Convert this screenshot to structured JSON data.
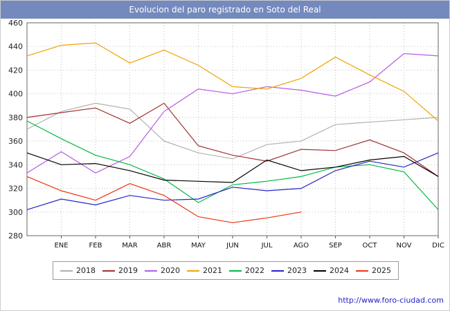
{
  "header": {
    "title": "Evolucion del paro registrado en Soto del Real",
    "bg_color": "#7489bd",
    "text_color": "#ffffff"
  },
  "footer": {
    "url": "http://www.foro-ciudad.com",
    "link_color": "#2222cc"
  },
  "chart_data": {
    "type": "line",
    "title": "Evolucion del paro registrado en Soto del Real",
    "xlabel": "",
    "ylabel": "",
    "ylim": [
      280,
      460
    ],
    "y_ticks": [
      280,
      300,
      320,
      340,
      360,
      380,
      400,
      420,
      440,
      460
    ],
    "x_categories": [
      "ENE",
      "FEB",
      "MAR",
      "ABR",
      "MAY",
      "JUN",
      "JUL",
      "AGO",
      "SEP",
      "OCT",
      "NOV",
      "DIC"
    ],
    "grid": true,
    "legend_position": "bottom",
    "series": [
      {
        "name": "2018",
        "color": "#b0b0b0",
        "start_value": 370,
        "values": [
          385,
          392,
          387,
          360,
          350,
          345,
          357,
          360,
          374,
          376,
          378,
          380
        ]
      },
      {
        "name": "2019",
        "color": "#a03030",
        "start_value": 380,
        "values": [
          384,
          388,
          375,
          392,
          356,
          348,
          343,
          353,
          352,
          361,
          350,
          330
        ]
      },
      {
        "name": "2020",
        "color": "#b45ce0",
        "start_value": 333,
        "values": [
          351,
          333,
          347,
          385,
          404,
          400,
          406,
          403,
          398,
          410,
          434,
          432
        ]
      },
      {
        "name": "2021",
        "color": "#f2a200",
        "start_value": 432,
        "values": [
          441,
          443,
          426,
          437,
          424,
          406,
          404,
          413,
          431,
          416,
          402,
          377
        ]
      },
      {
        "name": "2022",
        "color": "#00b844",
        "start_value": 377,
        "values": [
          362,
          348,
          340,
          328,
          308,
          323,
          326,
          330,
          338,
          340,
          334,
          302
        ]
      },
      {
        "name": "2023",
        "color": "#2222cc",
        "start_value": 302,
        "values": [
          311,
          306,
          314,
          310,
          311,
          321,
          318,
          320,
          335,
          343,
          338,
          350
        ]
      },
      {
        "name": "2024",
        "color": "#000000",
        "start_value": 350,
        "values": [
          340,
          341,
          335,
          327,
          326,
          325,
          344,
          335,
          338,
          344,
          347,
          330
        ]
      },
      {
        "name": "2025",
        "color": "#ee3311",
        "start_value": 330,
        "values": [
          318,
          310,
          324,
          314,
          296,
          291,
          295,
          300
        ]
      }
    ]
  }
}
